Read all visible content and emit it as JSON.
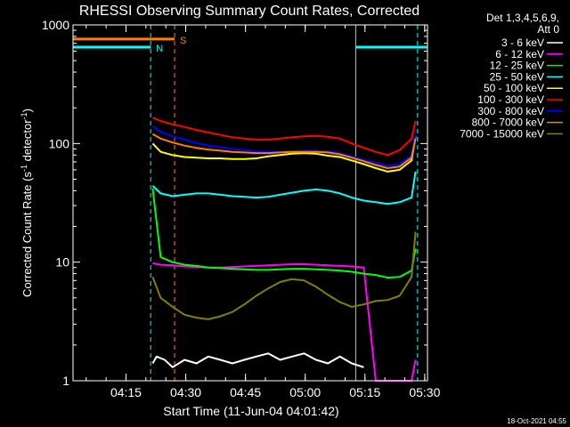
{
  "chart_data": {
    "type": "line",
    "title": "RHESSI Observing Summary Count Rates, Corrected",
    "xlabel": "Start Time (11-Jun-04 04:01:42)",
    "ylabel_main": "Corrected Count Rate (s",
    "ylabel_sup1": "-1",
    "ylabel_mid": " detector",
    "ylabel_sup2": "-1",
    "ylabel_end": ")",
    "yscale": "log",
    "ylim": [
      1,
      1000
    ],
    "xlim_minutes": [
      0,
      89
    ],
    "x_unit": "minutes after 04:01:42",
    "y_ticks": [
      {
        "value": 1,
        "label": "1"
      },
      {
        "value": 10,
        "label": "10"
      },
      {
        "value": 100,
        "label": "100"
      },
      {
        "value": 1000,
        "label": "1000"
      }
    ],
    "x_ticks": [
      {
        "minute": 13.3,
        "label": "04:15"
      },
      {
        "minute": 28.3,
        "label": "04:30"
      },
      {
        "minute": 43.3,
        "label": "04:45"
      },
      {
        "minute": 58.3,
        "label": "05:00"
      },
      {
        "minute": 73.3,
        "label": "05:15"
      },
      {
        "minute": 88.3,
        "label": "05:30"
      }
    ],
    "legend_header": [
      "Det 1,3,4,5,6,9,",
      "Att 0"
    ],
    "series": [
      {
        "name": "3 - 6 keV",
        "color": "#ffffff",
        "x": [
          20,
          21,
          23,
          25,
          28,
          31,
          34,
          37,
          40,
          43,
          46,
          49,
          52,
          55,
          58,
          61,
          64,
          67,
          70,
          73
        ],
        "y": [
          1.4,
          1.6,
          1.5,
          1.3,
          1.5,
          1.4,
          1.6,
          1.5,
          1.4,
          1.5,
          1.6,
          1.7,
          1.5,
          1.6,
          1.7,
          1.5,
          1.4,
          1.6,
          1.4,
          1.3
        ]
      },
      {
        "name": "6 - 12 keV",
        "color": "#ff00ff",
        "x": [
          20,
          22,
          25,
          28,
          31,
          34,
          37,
          40,
          43,
          46,
          49,
          52,
          55,
          58,
          61,
          64,
          67,
          70,
          73,
          76,
          79,
          82,
          85,
          86
        ],
        "y": [
          9.8,
          9.5,
          9.4,
          9.2,
          9.1,
          9.0,
          9.0,
          9.1,
          9.2,
          9.3,
          9.4,
          9.5,
          9.6,
          9.6,
          9.5,
          9.4,
          9.3,
          9.2,
          9.0,
          1.0,
          1.0,
          1.0,
          1.0,
          1.5
        ]
      },
      {
        "name": "12 - 25 keV",
        "color": "#00ff00",
        "x": [
          20,
          22,
          25,
          28,
          31,
          34,
          37,
          40,
          43,
          46,
          49,
          52,
          55,
          58,
          61,
          64,
          67,
          70,
          73,
          76,
          79,
          82,
          85,
          86
        ],
        "y": [
          42,
          11,
          10,
          9.5,
          9.3,
          9.0,
          8.9,
          8.8,
          8.7,
          8.6,
          8.6,
          8.7,
          8.8,
          8.8,
          8.7,
          8.6,
          8.5,
          8.3,
          8.0,
          7.8,
          7.4,
          7.5,
          8.5,
          13
        ]
      },
      {
        "name": "25 - 50 keV",
        "color": "#00ffff",
        "x": [
          20,
          22,
          25,
          28,
          31,
          34,
          37,
          40,
          43,
          46,
          49,
          52,
          55,
          58,
          61,
          64,
          67,
          70,
          73,
          76,
          79,
          82,
          85,
          86
        ],
        "y": [
          44,
          38,
          36,
          37,
          38,
          38,
          37,
          36,
          35.5,
          35,
          35.5,
          37,
          38.5,
          40,
          41,
          40,
          38,
          35,
          33,
          32,
          31,
          32,
          35,
          58
        ]
      },
      {
        "name": "50 - 100 keV",
        "color": "#ffff00",
        "x": [
          20,
          22,
          25,
          28,
          31,
          34,
          37,
          40,
          43,
          46,
          49,
          52,
          55,
          58,
          61,
          64,
          67,
          70,
          73,
          76,
          79,
          82,
          85,
          86
        ],
        "y": [
          100,
          85,
          80,
          77,
          76,
          75,
          75,
          74,
          74,
          75,
          78,
          80,
          82,
          83,
          82,
          79,
          77,
          72,
          67,
          62,
          58,
          60,
          72,
          115
        ]
      },
      {
        "name": "100 - 300 keV",
        "color": "#ff0000",
        "x": [
          20,
          22,
          25,
          28,
          31,
          34,
          37,
          40,
          43,
          46,
          49,
          52,
          55,
          58,
          61,
          64,
          67,
          70,
          73,
          76,
          79,
          82,
          85,
          86
        ],
        "y": [
          165,
          155,
          145,
          138,
          130,
          124,
          118,
          113,
          110,
          108,
          108,
          110,
          113,
          115,
          116,
          114,
          110,
          100,
          92,
          85,
          80,
          88,
          110,
          155
        ]
      },
      {
        "name": "300 - 800 keV",
        "color": "#0000ff",
        "x": [
          20,
          22,
          25,
          28,
          31,
          34,
          37,
          40,
          43,
          46,
          49,
          52,
          55,
          58,
          61,
          64,
          67,
          70,
          73,
          76,
          79,
          82,
          85,
          86
        ],
        "y": [
          140,
          125,
          115,
          108,
          101,
          96,
          93,
          90,
          88,
          86,
          85,
          85,
          86,
          87,
          87,
          86,
          83,
          78,
          73,
          69,
          65,
          67,
          80,
          120
        ]
      },
      {
        "name": "800 - 7000 keV",
        "color": "#ff8000",
        "x": [
          20,
          22,
          25,
          28,
          31,
          34,
          37,
          40,
          43,
          46,
          49,
          52,
          55,
          58,
          61,
          64,
          67,
          70,
          73,
          76,
          79,
          82,
          85,
          86
        ],
        "y": [
          120,
          110,
          102,
          96,
          92,
          89,
          87,
          85,
          84,
          83,
          83,
          84,
          85,
          85,
          85,
          84,
          81,
          76,
          71,
          66,
          62,
          64,
          76,
          110
        ]
      },
      {
        "name": "7000 - 15000 keV",
        "color": "#808000",
        "x": [
          20,
          22,
          25,
          28,
          31,
          34,
          37,
          40,
          43,
          46,
          49,
          52,
          55,
          58,
          61,
          64,
          67,
          70,
          73,
          76,
          79,
          82,
          85,
          86
        ],
        "y": [
          7.5,
          5.0,
          4.2,
          3.6,
          3.4,
          3.3,
          3.5,
          3.8,
          4.4,
          5.2,
          6.0,
          6.8,
          7.2,
          7.0,
          6.2,
          5.3,
          4.6,
          4.2,
          4.4,
          4.7,
          4.8,
          5.2,
          7.5,
          18
        ]
      }
    ],
    "state_bars": [
      {
        "label": "N",
        "color": "#00ffff",
        "y": 650,
        "segments": [
          [
            0,
            19.5
          ],
          [
            71,
            89
          ]
        ]
      },
      {
        "label": "S",
        "color": "#ff8000",
        "y": 760,
        "segments": [
          [
            0,
            25.5
          ]
        ]
      }
    ],
    "markers": [
      {
        "minute": 19.5,
        "color": "#00ffff",
        "style": "dashed"
      },
      {
        "minute": 25.5,
        "color": "#ff8000",
        "style": "dashed"
      },
      {
        "minute": 71,
        "color": "#00ffff",
        "style": "solid"
      },
      {
        "minute": 86.5,
        "color": "#00ffff",
        "style": "dashed"
      }
    ],
    "grid": false,
    "legend_placement": "right"
  },
  "footer_timestamp": "18-Oct-2021 04:55"
}
